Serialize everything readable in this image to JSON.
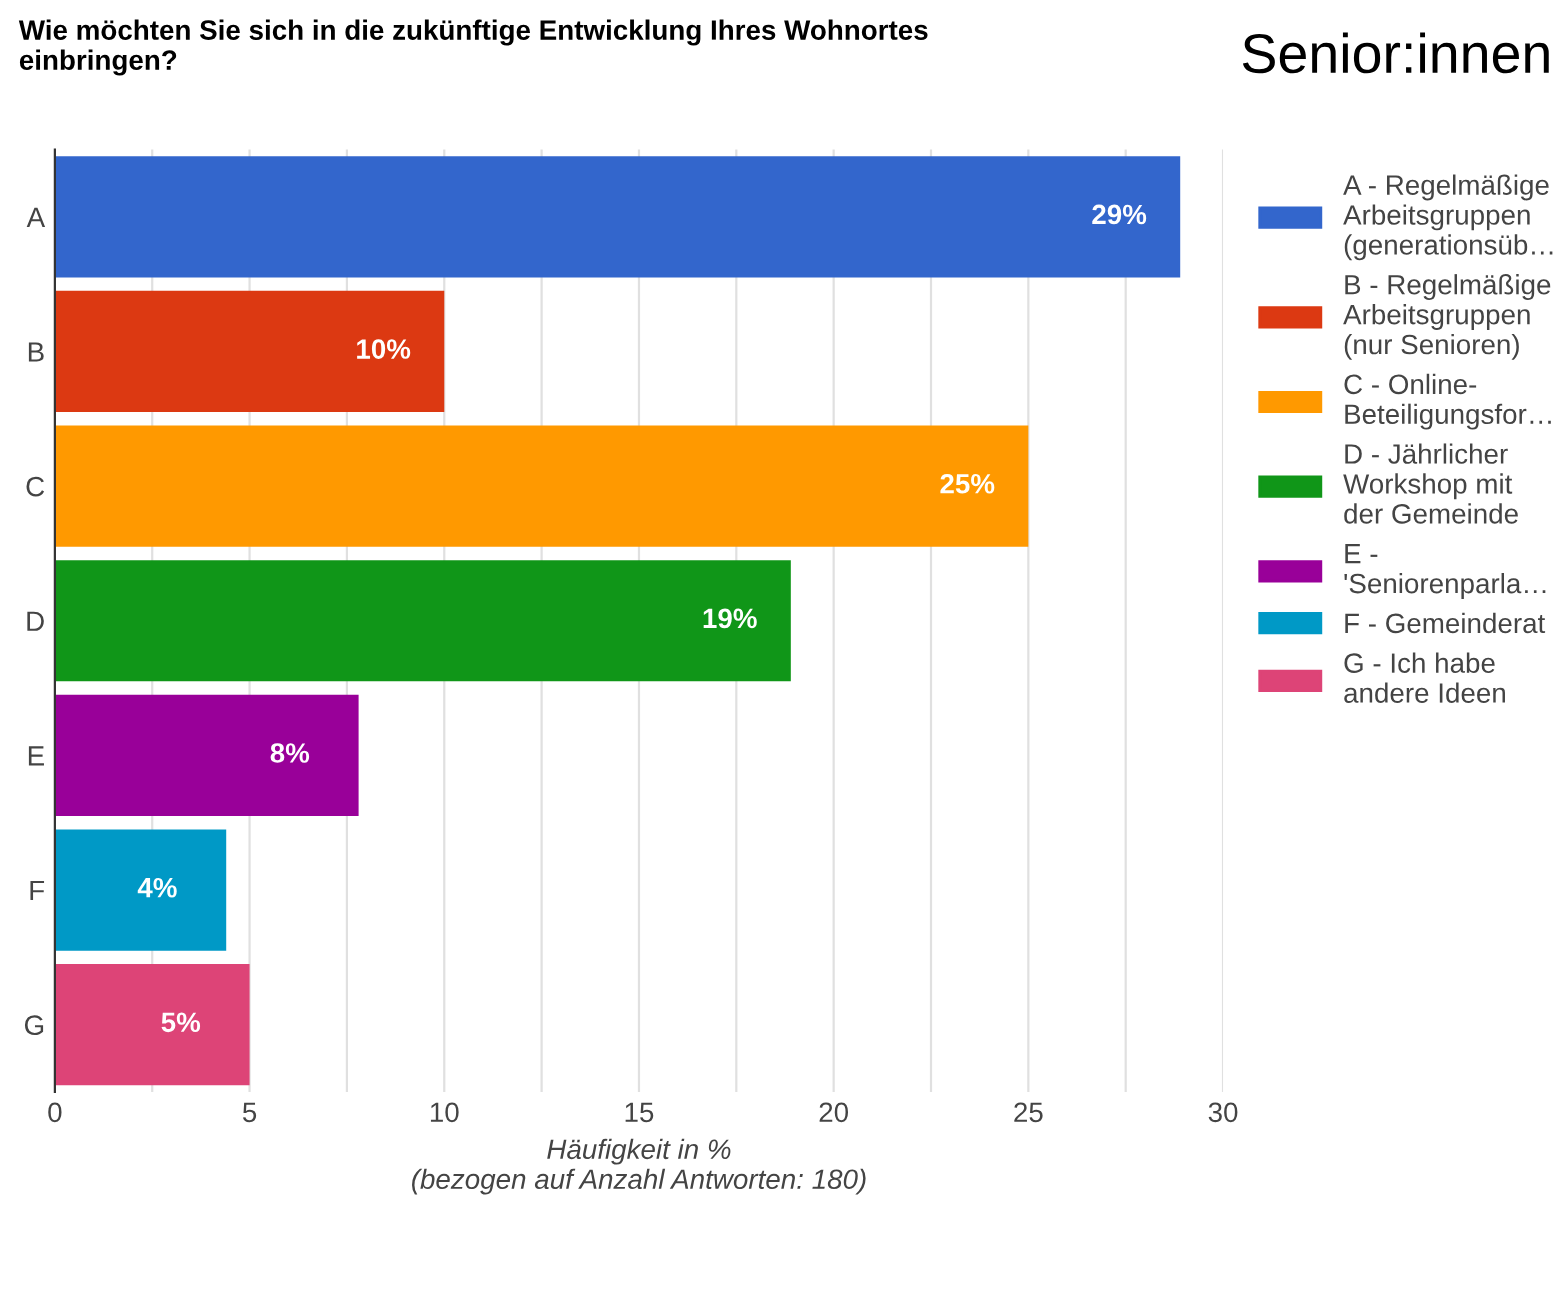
{
  "chart_data": {
    "type": "bar",
    "orientation": "horizontal",
    "title": "Wie möchten Sie sich in die zukünftige Entwicklung Ihres Wohnortes\neinbringen?",
    "annotations": [
      "Senior:innen"
    ],
    "xlabel": "Häufigkeit in %\n(bezogen auf Anzahl Antworten: 180)",
    "categories": [
      "A",
      "B",
      "C",
      "D",
      "E",
      "F",
      "G"
    ],
    "series": [
      {
        "name": "A - Regelmäßige\nArbeitsgruppen\n(generationsüb…",
        "color": "#3366cc",
        "values": [
          28.9,
          null,
          null,
          null,
          null,
          null,
          null
        ],
        "value_labels": [
          "29%",
          null,
          null,
          null,
          null,
          null,
          null
        ]
      },
      {
        "name": "B - Regelmäßige\nArbeitsgruppen\n(nur Senioren)",
        "color": "#dc3912",
        "values": [
          null,
          10,
          null,
          null,
          null,
          null,
          null
        ],
        "value_labels": [
          null,
          "10%",
          null,
          null,
          null,
          null,
          null
        ]
      },
      {
        "name": "C - Online-\nBeteiligungsfor…",
        "color": "#ff9900",
        "values": [
          null,
          null,
          25,
          null,
          null,
          null,
          null
        ],
        "value_labels": [
          null,
          null,
          "25%",
          null,
          null,
          null,
          null
        ]
      },
      {
        "name": "D - Jährlicher\nWorkshop mit\nder Gemeinde",
        "color": "#109618",
        "values": [
          null,
          null,
          null,
          18.9,
          null,
          null,
          null
        ],
        "value_labels": [
          null,
          null,
          null,
          "19%",
          null,
          null,
          null
        ]
      },
      {
        "name": "E -\n'Seniorenparla…",
        "color": "#990099",
        "values": [
          null,
          null,
          null,
          null,
          7.8,
          null,
          null
        ],
        "value_labels": [
          null,
          null,
          null,
          null,
          "8%",
          null,
          null
        ]
      },
      {
        "name": "F - Gemeinderat",
        "color": "#0099c6",
        "values": [
          null,
          null,
          null,
          null,
          null,
          4.4,
          null
        ],
        "value_labels": [
          null,
          null,
          null,
          null,
          null,
          "4%",
          null
        ]
      },
      {
        "name": "G - Ich habe\nandere Ideen",
        "color": "#dd4477",
        "values": [
          null,
          null,
          null,
          null,
          null,
          null,
          5.0
        ],
        "value_labels": [
          null,
          null,
          null,
          null,
          null,
          null,
          "5%"
        ]
      }
    ],
    "xlim": [
      0,
      30
    ],
    "xticks": [
      0,
      {
        "value": 2.5,
        "label": null
      },
      5,
      {
        "value": 7.5,
        "label": null
      },
      10,
      {
        "value": 12.5,
        "label": null
      },
      15,
      {
        "value": 17.5,
        "label": null
      },
      20,
      {
        "value": 22.5,
        "label": null
      },
      25,
      {
        "value": 27.5,
        "label": null
      },
      30
    ],
    "grid": "x",
    "legend": "right"
  }
}
